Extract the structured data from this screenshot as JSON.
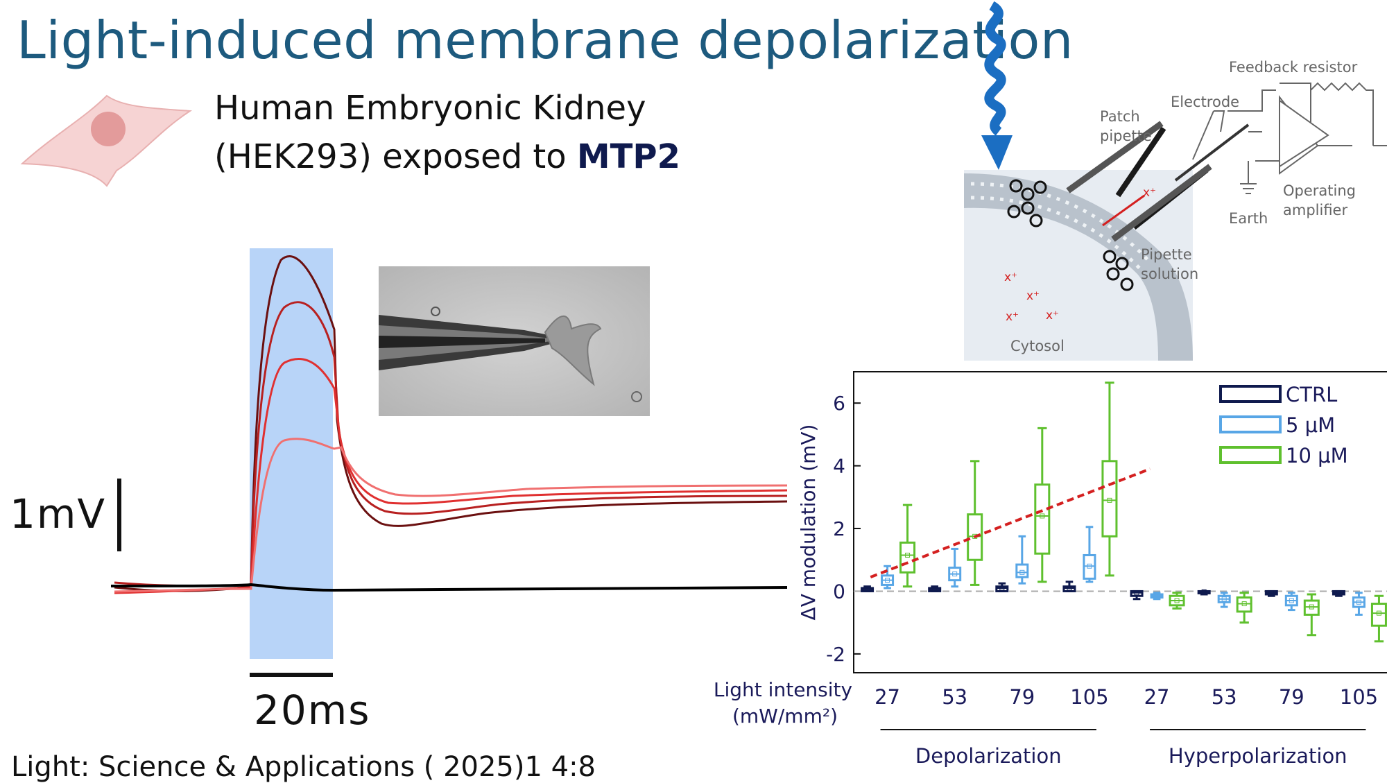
{
  "slide": {
    "title": "Light-induced membrane depolarization",
    "subtitle_line1": "Human Embryonic Kidney",
    "subtitle_line2_prefix": "(HEK293) exposed to ",
    "subtitle_bold": "MTP2",
    "citation": "Light: Science & Applications ( 2025)1 4:8"
  },
  "traces": {
    "voltage_scale": "1mV",
    "time_scale": "20ms",
    "trace_colors": [
      "#6b1010",
      "#b82020",
      "#e03030",
      "#f07070"
    ],
    "control_color": "#000000",
    "stimulus_color": "#b8d4f8"
  },
  "schematic": {
    "labels": {
      "feedback": "Feedback resistor",
      "electrode": "Electrode",
      "patch1": "Patch",
      "patch2": "pipette",
      "op1": "Operating",
      "op2": "amplifier",
      "earth": "Earth",
      "sol1": "Pipette",
      "sol2": "solution",
      "cytosol": "Cytosol",
      "ion": "x⁺"
    }
  },
  "chart_data": {
    "type": "box",
    "ylabel": "ΔV modulation (mV)",
    "ylim": [
      -2.6,
      7.0
    ],
    "yticks": [
      -2,
      0,
      2,
      4,
      6
    ],
    "x_title_line1": "Light intensity",
    "x_title_line2": "(mW/mm²)",
    "categories": [
      "27",
      "53",
      "79",
      "105",
      "27",
      "53",
      "79",
      "105"
    ],
    "groups": [
      {
        "label": "Depolarization",
        "categories": [
          "27",
          "53",
          "79",
          "105"
        ]
      },
      {
        "label": "Hyperpolarization",
        "categories": [
          "27",
          "53",
          "79",
          "105"
        ]
      }
    ],
    "series": [
      {
        "name": "CTRL",
        "color": "#0f1a4e",
        "boxes": [
          {
            "min": 0.0,
            "q1": 0.0,
            "median": 0.05,
            "q3": 0.1,
            "max": 0.15
          },
          {
            "min": 0.0,
            "q1": 0.0,
            "median": 0.05,
            "q3": 0.1,
            "max": 0.15
          },
          {
            "min": 0.0,
            "q1": 0.0,
            "median": 0.1,
            "q3": 0.15,
            "max": 0.25
          },
          {
            "min": 0.0,
            "q1": 0.0,
            "median": 0.1,
            "q3": 0.15,
            "max": 0.3
          },
          {
            "min": -0.25,
            "q1": -0.15,
            "median": -0.05,
            "q3": 0.0,
            "max": 0.0
          },
          {
            "min": -0.1,
            "q1": -0.05,
            "median": -0.02,
            "q3": 0.0,
            "max": 0.0
          },
          {
            "min": -0.15,
            "q1": -0.1,
            "median": -0.05,
            "q3": 0.0,
            "max": 0.0
          },
          {
            "min": -0.15,
            "q1": -0.1,
            "median": -0.05,
            "q3": 0.0,
            "max": 0.0
          }
        ]
      },
      {
        "name": "5 μM",
        "color": "#58a6e6",
        "boxes": [
          {
            "min": 0.1,
            "q1": 0.2,
            "median": 0.35,
            "q3": 0.5,
            "max": 0.8
          },
          {
            "min": 0.15,
            "q1": 0.35,
            "median": 0.55,
            "q3": 0.75,
            "max": 1.35
          },
          {
            "min": 0.25,
            "q1": 0.45,
            "median": 0.6,
            "q3": 0.85,
            "max": 1.75
          },
          {
            "min": 0.3,
            "q1": 0.4,
            "median": 0.8,
            "q3": 1.15,
            "max": 2.05
          },
          {
            "min": -0.25,
            "q1": -0.2,
            "median": -0.15,
            "q3": -0.1,
            "max": -0.05
          },
          {
            "min": -0.5,
            "q1": -0.35,
            "median": -0.25,
            "q3": -0.15,
            "max": -0.05
          },
          {
            "min": -0.6,
            "q1": -0.45,
            "median": -0.3,
            "q3": -0.15,
            "max": -0.05
          },
          {
            "min": -0.75,
            "q1": -0.5,
            "median": -0.35,
            "q3": -0.2,
            "max": -0.05
          }
        ]
      },
      {
        "name": "10 μM",
        "color": "#5fc02e",
        "boxes": [
          {
            "min": 0.15,
            "q1": 0.6,
            "median": 1.15,
            "q3": 1.55,
            "max": 2.75
          },
          {
            "min": 0.2,
            "q1": 1.0,
            "median": 1.75,
            "q3": 2.45,
            "max": 4.15
          },
          {
            "min": 0.3,
            "q1": 1.2,
            "median": 2.4,
            "q3": 3.4,
            "max": 5.2
          },
          {
            "min": 0.5,
            "q1": 1.75,
            "median": 2.9,
            "q3": 4.15,
            "max": 6.65
          },
          {
            "min": -0.55,
            "q1": -0.45,
            "median": -0.3,
            "q3": -0.15,
            "max": -0.05
          },
          {
            "min": -1.0,
            "q1": -0.65,
            "median": -0.4,
            "q3": -0.2,
            "max": -0.05
          },
          {
            "min": -1.4,
            "q1": -0.75,
            "median": -0.5,
            "q3": -0.3,
            "max": -0.1
          },
          {
            "min": -1.6,
            "q1": -1.1,
            "median": -0.7,
            "q3": -0.4,
            "max": -0.15
          }
        ]
      }
    ],
    "trendline": {
      "style": "dashed",
      "color": "#d42020",
      "x0": 0.5,
      "y0": 0.45,
      "x1": 8.8,
      "y1": 3.9
    },
    "zero_line": "dashed grey",
    "legend_position": "top-right"
  }
}
